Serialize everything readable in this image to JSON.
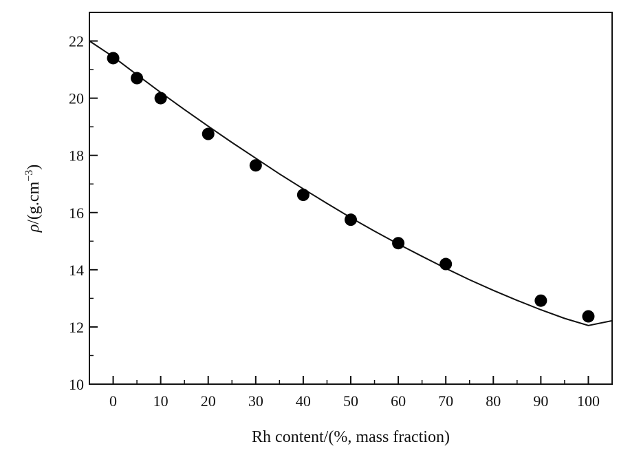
{
  "chart_data": {
    "type": "scatter",
    "xlabel": "Rh content/(%, mass fraction)",
    "ylabel_symbol": "ρ",
    "ylabel_main": "/(g.cm",
    "ylabel_sup": "−3",
    "ylabel_close": ")",
    "xlim": [
      -5,
      105
    ],
    "ylim": [
      10,
      23
    ],
    "xticks": [
      0,
      10,
      20,
      30,
      40,
      50,
      60,
      70,
      80,
      90,
      100
    ],
    "yticks": [
      10,
      12,
      14,
      16,
      18,
      20,
      22
    ],
    "grid": false,
    "series": [
      {
        "kind": "points",
        "x": [
          0,
          5,
          10,
          20,
          30,
          40,
          50,
          60,
          70,
          90,
          100
        ],
        "y": [
          21.4,
          20.7,
          20.0,
          18.75,
          17.65,
          16.62,
          15.75,
          14.93,
          14.2,
          12.92,
          12.37
        ]
      },
      {
        "kind": "fit-curve",
        "x": [
          -5,
          0,
          5,
          10,
          15,
          20,
          25,
          30,
          35,
          40,
          45,
          50,
          55,
          60,
          65,
          70,
          75,
          80,
          85,
          90,
          95,
          100,
          105
        ],
        "y": [
          22.0,
          21.45,
          20.82,
          20.2,
          19.6,
          19.02,
          18.45,
          17.9,
          17.35,
          16.83,
          16.32,
          15.82,
          15.35,
          14.9,
          14.47,
          14.05,
          13.65,
          13.28,
          12.93,
          12.6,
          12.3,
          12.05,
          12.22
        ]
      }
    ]
  }
}
